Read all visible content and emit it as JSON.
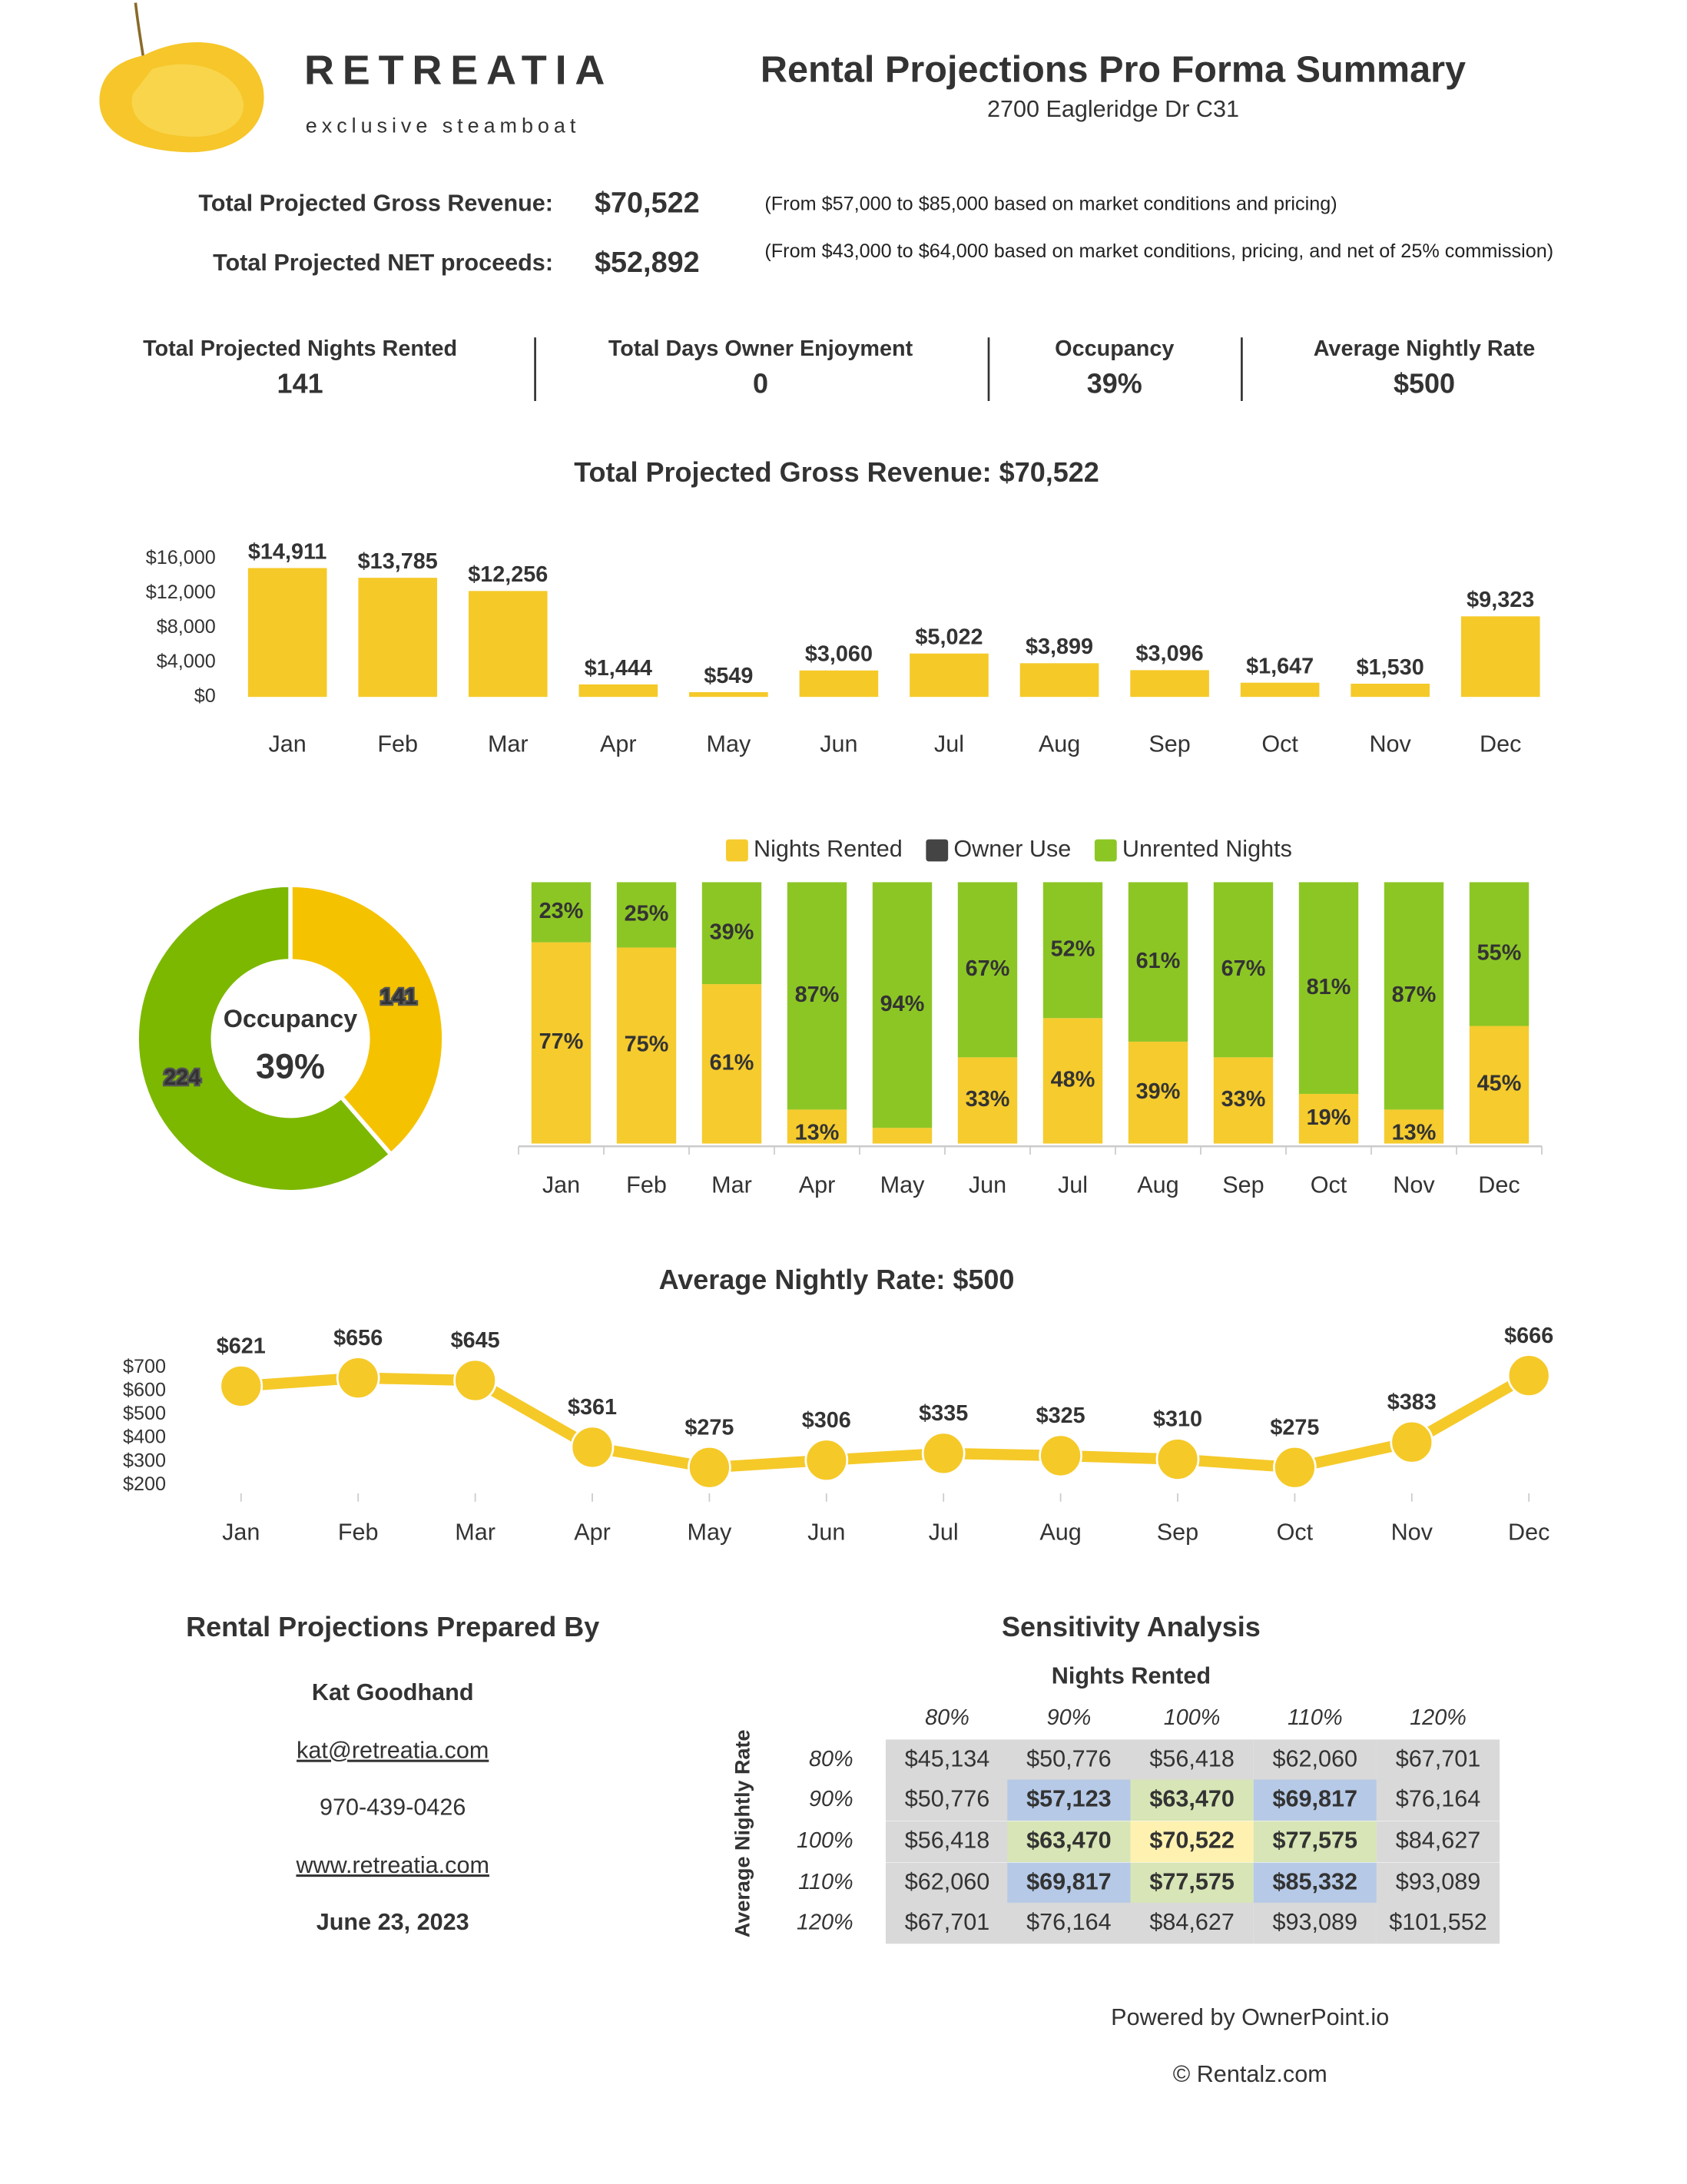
{
  "header": {
    "brand": "RETREATIA",
    "tagline": "exclusive steamboat",
    "title": "Rental Projections Pro Forma Summary",
    "address": "2700 Eagleridge Dr C31"
  },
  "summary": [
    {
      "label": "Total Projected Gross Revenue:",
      "value": "$70,522",
      "note": "(From $57,000 to $85,000 based on market conditions and pricing)"
    },
    {
      "label": "Total Projected NET proceeds:",
      "value": "$52,892",
      "note": "(From $43,000 to $64,000 based on market conditions, pricing, and net of 25% commission)"
    }
  ],
  "kpis": [
    {
      "label": "Total Projected Nights Rented",
      "value": "141"
    },
    {
      "label": "Total Days Owner Enjoyment",
      "value": "0"
    },
    {
      "label": "Occupancy",
      "value": "39%"
    },
    {
      "label": "Average Nightly Rate",
      "value": "$500"
    }
  ],
  "chart_data": [
    {
      "type": "bar",
      "title": "Total Projected Gross Revenue: $70,522",
      "categories": [
        "Jan",
        "Feb",
        "Mar",
        "Apr",
        "May",
        "Jun",
        "Jul",
        "Aug",
        "Sep",
        "Oct",
        "Nov",
        "Dec"
      ],
      "values": [
        14911,
        13785,
        12256,
        1444,
        549,
        3060,
        5022,
        3899,
        3096,
        1647,
        1530,
        9323
      ],
      "value_labels": [
        "$14,911",
        "$13,785",
        "$12,256",
        "$1,444",
        "$549",
        "$3,060",
        "$5,022",
        "$3,899",
        "$3,096",
        "$1,647",
        "$1,530",
        "$9,323"
      ],
      "color": "#f5c928",
      "ylim": [
        0,
        16000
      ],
      "yticks": [
        {
          "value": 0,
          "label": "$0"
        },
        {
          "value": 4000,
          "label": "$4,000"
        },
        {
          "value": 8000,
          "label": "$8,000"
        },
        {
          "value": 12000,
          "label": "$12,000"
        },
        {
          "value": 16000,
          "label": "$16,000"
        }
      ]
    },
    {
      "type": "pie",
      "values": [
        141,
        224
      ],
      "colors": [
        "#f5c200",
        "#7cb800"
      ],
      "center_label": "Occupancy",
      "center_value": "39%"
    },
    {
      "type": "stacked_bar",
      "categories": [
        "Jan",
        "Feb",
        "Mar",
        "Apr",
        "May",
        "Jun",
        "Jul",
        "Aug",
        "Sep",
        "Oct",
        "Nov",
        "Dec"
      ],
      "ylim": [
        0,
        100
      ],
      "legend": "top",
      "series": [
        {
          "name": "Nights Rented",
          "color": "#f5cb2e",
          "values": [
            77,
            75,
            61,
            13,
            6,
            33,
            48,
            39,
            33,
            19,
            13,
            45
          ],
          "value_labels": [
            "77%",
            "75%",
            "61%",
            "13%",
            null,
            "33%",
            "48%",
            "39%",
            "33%",
            "19%",
            "13%",
            "45%"
          ]
        },
        {
          "name": "Owner Use",
          "color": "#444444",
          "values": [
            0,
            0,
            0,
            0,
            0,
            0,
            0,
            0,
            0,
            0,
            0,
            0
          ]
        },
        {
          "name": "Unrented Nights",
          "color": "#8cc625",
          "values": [
            23,
            25,
            39,
            87,
            94,
            67,
            52,
            61,
            67,
            81,
            87,
            55
          ],
          "value_labels": [
            "23%",
            "25%",
            "39%",
            "87%",
            "94%",
            "67%",
            "52%",
            "61%",
            "67%",
            "81%",
            "87%",
            "55%"
          ]
        }
      ]
    },
    {
      "type": "line",
      "title": "Average Nightly Rate: $500",
      "categories": [
        "Jan",
        "Feb",
        "Mar",
        "Apr",
        "May",
        "Jun",
        "Jul",
        "Aug",
        "Sep",
        "Oct",
        "Nov",
        "Dec"
      ],
      "values": [
        621,
        656,
        645,
        361,
        275,
        306,
        335,
        325,
        310,
        275,
        383,
        666
      ],
      "value_labels": [
        "$621",
        "$656",
        "$645",
        "$361",
        "$275",
        "$306",
        "$335",
        "$325",
        "$310",
        "$275",
        "$383",
        "$666"
      ],
      "color": "#f5c928",
      "ylim": [
        200,
        700
      ],
      "yticks": [
        {
          "value": 200,
          "label": "$200"
        },
        {
          "value": 300,
          "label": "$300"
        },
        {
          "value": 400,
          "label": "$400"
        },
        {
          "value": 500,
          "label": "$500"
        },
        {
          "value": 600,
          "label": "$600"
        },
        {
          "value": 700,
          "label": "$700"
        }
      ]
    }
  ],
  "prepared": {
    "title": "Rental Projections Prepared By",
    "name": "Kat Goodhand",
    "email": "kat@retreatia.com",
    "phone": "970-439-0426",
    "website": "www.retreatia.com",
    "date": "June 23, 2023"
  },
  "sensitivity": {
    "title": "Sensitivity Analysis",
    "column_header": "Nights Rented",
    "row_header": "Average Nightly Rate",
    "columns": [
      "80%",
      "90%",
      "100%",
      "110%",
      "120%"
    ],
    "rows": [
      "80%",
      "90%",
      "100%",
      "110%",
      "120%"
    ],
    "cells": [
      [
        "$45,134",
        "$50,776",
        "$56,418",
        "$62,060",
        "$67,701"
      ],
      [
        "$50,776",
        "$57,123",
        "$63,470",
        "$69,817",
        "$76,164"
      ],
      [
        "$56,418",
        "$63,470",
        "$70,522",
        "$77,575",
        "$84,627"
      ],
      [
        "$62,060",
        "$69,817",
        "$77,575",
        "$85,332",
        "$93,089"
      ],
      [
        "$67,701",
        "$76,164",
        "$84,627",
        "$93,089",
        "$101,552"
      ]
    ]
  },
  "footer": {
    "powered": "Powered by OwnerPoint.io",
    "copyright": "© Rentalz.com"
  }
}
